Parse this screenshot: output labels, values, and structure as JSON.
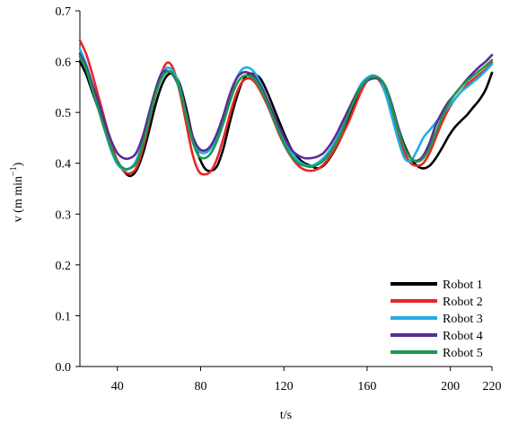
{
  "chart_data": {
    "type": "line",
    "title": "",
    "xlabel": "t/s",
    "ylabel_main": "v (m min",
    "ylabel_sup": "−1",
    "ylabel_close": ")",
    "xlim": [
      22,
      220
    ],
    "ylim": [
      0,
      0.7
    ],
    "xticks": [
      40,
      80,
      120,
      160,
      200,
      220
    ],
    "xtick_labels": [
      "40",
      "80",
      "120",
      "160",
      "200",
      "220"
    ],
    "yticks": [
      0,
      0.1,
      0.2,
      0.3,
      0.4,
      0.5,
      0.6,
      0.7
    ],
    "ytick_labels": [
      "0.0",
      "0.1",
      "0.2",
      "0.3",
      "0.4",
      "0.5",
      "0.6",
      "0.7"
    ],
    "grid": false,
    "legend_position": "bottom-right",
    "series": [
      {
        "name": "Robot 1",
        "color": "#000000",
        "x": [
          22,
          25,
          28,
          31,
          34,
          37,
          40,
          43,
          46,
          49,
          52,
          55,
          58,
          61,
          64,
          67,
          70,
          73,
          76,
          79,
          82,
          85,
          88,
          91,
          94,
          97,
          100,
          103,
          106,
          109,
          112,
          115,
          118,
          121,
          124,
          127,
          130,
          133,
          136,
          139,
          142,
          145,
          148,
          151,
          154,
          157,
          160,
          163,
          166,
          169,
          172,
          175,
          178,
          181,
          184,
          187,
          190,
          193,
          196,
          199,
          202,
          205,
          208,
          211,
          214,
          217,
          220
        ],
        "y": [
          0.6,
          0.575,
          0.54,
          0.505,
          0.465,
          0.43,
          0.405,
          0.385,
          0.375,
          0.385,
          0.415,
          0.46,
          0.51,
          0.55,
          0.573,
          0.575,
          0.555,
          0.51,
          0.455,
          0.415,
          0.39,
          0.385,
          0.395,
          0.43,
          0.48,
          0.525,
          0.56,
          0.575,
          0.575,
          0.565,
          0.54,
          0.51,
          0.48,
          0.45,
          0.425,
          0.41,
          0.4,
          0.395,
          0.39,
          0.395,
          0.41,
          0.43,
          0.455,
          0.485,
          0.52,
          0.55,
          0.567,
          0.57,
          0.565,
          0.545,
          0.51,
          0.47,
          0.435,
          0.41,
          0.395,
          0.39,
          0.395,
          0.41,
          0.43,
          0.45,
          0.465,
          0.48,
          0.49,
          0.5,
          0.51,
          0.52,
          0.53
        ],
        "x_end": [
          196,
          199,
          202,
          205,
          208,
          211,
          214,
          217,
          220
        ],
        "y_end": [
          0.43,
          0.452,
          0.47,
          0.483,
          0.495,
          0.51,
          0.525,
          0.545,
          0.578
        ]
      },
      {
        "name": "Robot 2",
        "color": "#e8262a",
        "x": [
          22,
          25,
          28,
          31,
          34,
          37,
          40,
          43,
          46,
          49,
          52,
          55,
          58,
          61,
          64,
          67,
          70,
          73,
          76,
          79,
          82,
          85,
          88,
          91,
          94,
          97,
          100,
          103,
          106,
          109,
          112,
          115,
          118,
          121,
          124,
          127,
          130,
          133,
          136,
          139,
          142,
          145,
          148,
          151,
          154,
          157,
          160,
          163,
          166,
          169,
          172,
          175,
          178,
          181,
          184,
          187,
          190,
          193,
          196,
          199,
          202,
          205,
          208,
          211,
          214,
          217,
          220
        ],
        "y": [
          0.642,
          0.615,
          0.575,
          0.53,
          0.485,
          0.44,
          0.405,
          0.385,
          0.38,
          0.39,
          0.425,
          0.475,
          0.53,
          0.575,
          0.598,
          0.585,
          0.54,
          0.48,
          0.42,
          0.385,
          0.378,
          0.385,
          0.41,
          0.45,
          0.495,
          0.535,
          0.56,
          0.567,
          0.56,
          0.54,
          0.515,
          0.485,
          0.455,
          0.43,
          0.41,
          0.395,
          0.387,
          0.385,
          0.388,
          0.397,
          0.412,
          0.432,
          0.455,
          0.48,
          0.51,
          0.54,
          0.562,
          0.57,
          0.562,
          0.535,
          0.495,
          0.455,
          0.42,
          0.4,
          0.395,
          0.4,
          0.42,
          0.45,
          0.48,
          0.505,
          0.525,
          0.54,
          0.555,
          0.565,
          0.575,
          0.585,
          0.598
        ]
      },
      {
        "name": "Robot 3",
        "color": "#22aee8",
        "x": [
          22,
          25,
          28,
          31,
          34,
          37,
          40,
          43,
          46,
          49,
          52,
          55,
          58,
          61,
          64,
          67,
          70,
          73,
          76,
          79,
          82,
          85,
          88,
          91,
          94,
          97,
          100,
          103,
          106,
          109,
          112,
          115,
          118,
          121,
          124,
          127,
          130,
          133,
          136,
          139,
          142,
          145,
          148,
          151,
          154,
          157,
          160,
          163,
          166,
          169,
          172,
          175,
          178,
          181,
          184,
          187,
          190,
          193,
          196,
          199,
          202,
          205,
          208,
          211,
          214,
          217,
          220
        ],
        "y": [
          0.625,
          0.595,
          0.555,
          0.51,
          0.465,
          0.425,
          0.398,
          0.388,
          0.39,
          0.405,
          0.44,
          0.49,
          0.54,
          0.575,
          0.588,
          0.58,
          0.55,
          0.5,
          0.45,
          0.425,
          0.42,
          0.43,
          0.455,
          0.49,
          0.53,
          0.565,
          0.585,
          0.588,
          0.578,
          0.555,
          0.525,
          0.495,
          0.465,
          0.44,
          0.42,
          0.405,
          0.397,
          0.395,
          0.4,
          0.41,
          0.425,
          0.445,
          0.47,
          0.5,
          0.53,
          0.555,
          0.568,
          0.573,
          0.565,
          0.535,
          0.49,
          0.445,
          0.41,
          0.405,
          0.425,
          0.45,
          0.465,
          0.48,
          0.495,
          0.51,
          0.525,
          0.54,
          0.55,
          0.56,
          0.57,
          0.582,
          0.595
        ]
      },
      {
        "name": "Robot 4",
        "color": "#5b2a9a",
        "x": [
          22,
          25,
          28,
          31,
          34,
          37,
          40,
          43,
          46,
          49,
          52,
          55,
          58,
          61,
          64,
          67,
          70,
          73,
          76,
          79,
          82,
          85,
          88,
          91,
          94,
          97,
          100,
          103,
          106,
          109,
          112,
          115,
          118,
          121,
          124,
          127,
          130,
          133,
          136,
          139,
          142,
          145,
          148,
          151,
          154,
          157,
          160,
          163,
          166,
          169,
          172,
          175,
          178,
          181,
          184,
          187,
          190,
          193,
          196,
          199,
          202,
          205,
          208,
          211,
          214,
          217,
          220
        ],
        "y": [
          0.615,
          0.59,
          0.555,
          0.52,
          0.48,
          0.445,
          0.42,
          0.41,
          0.41,
          0.42,
          0.45,
          0.495,
          0.54,
          0.575,
          0.582,
          0.572,
          0.545,
          0.5,
          0.455,
          0.43,
          0.425,
          0.435,
          0.46,
          0.495,
          0.535,
          0.565,
          0.578,
          0.578,
          0.57,
          0.55,
          0.525,
          0.497,
          0.47,
          0.445,
          0.425,
          0.415,
          0.41,
          0.41,
          0.413,
          0.42,
          0.435,
          0.455,
          0.48,
          0.505,
          0.53,
          0.55,
          0.562,
          0.567,
          0.565,
          0.55,
          0.515,
          0.47,
          0.43,
          0.41,
          0.405,
          0.415,
          0.44,
          0.475,
          0.5,
          0.52,
          0.535,
          0.55,
          0.565,
          0.578,
          0.59,
          0.6,
          0.613
        ]
      },
      {
        "name": "Robot 5",
        "color": "#1a9a4a",
        "x": [
          22,
          25,
          28,
          31,
          34,
          37,
          40,
          43,
          46,
          49,
          52,
          55,
          58,
          61,
          64,
          67,
          70,
          73,
          76,
          79,
          82,
          85,
          88,
          91,
          94,
          97,
          100,
          103,
          106,
          109,
          112,
          115,
          118,
          121,
          124,
          127,
          130,
          133,
          136,
          139,
          142,
          145,
          148,
          151,
          154,
          157,
          160,
          163,
          166,
          169,
          172,
          175,
          178,
          181,
          184,
          187,
          190,
          193,
          196,
          199,
          202,
          205,
          208,
          211,
          214,
          217,
          220
        ],
        "y": [
          0.61,
          0.585,
          0.545,
          0.505,
          0.465,
          0.43,
          0.403,
          0.39,
          0.39,
          0.4,
          0.435,
          0.48,
          0.53,
          0.565,
          0.58,
          0.575,
          0.545,
          0.495,
          0.445,
          0.415,
          0.41,
          0.42,
          0.445,
          0.48,
          0.52,
          0.553,
          0.57,
          0.572,
          0.565,
          0.545,
          0.518,
          0.488,
          0.458,
          0.432,
          0.412,
          0.4,
          0.395,
          0.393,
          0.397,
          0.405,
          0.42,
          0.44,
          0.465,
          0.495,
          0.525,
          0.55,
          0.564,
          0.57,
          0.567,
          0.55,
          0.51,
          0.465,
          0.43,
          0.41,
          0.403,
          0.41,
          0.43,
          0.46,
          0.49,
          0.515,
          0.535,
          0.55,
          0.562,
          0.572,
          0.582,
          0.592,
          0.603
        ]
      }
    ]
  }
}
